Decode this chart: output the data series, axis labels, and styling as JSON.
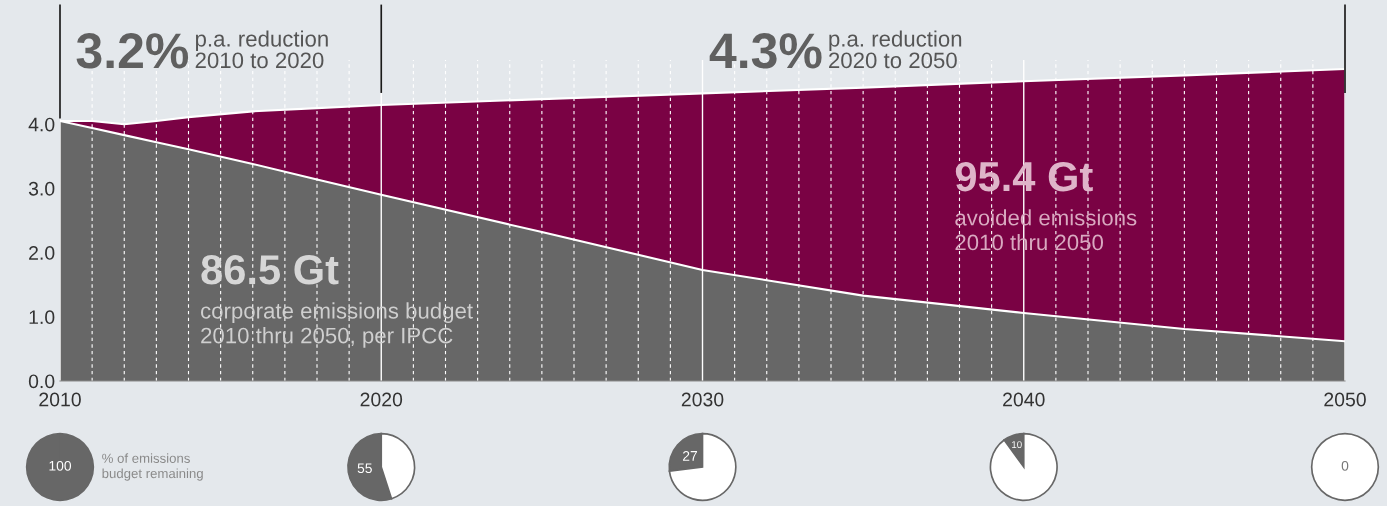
{
  "chart_data": [
    {
      "type": "area",
      "stacked": true,
      "x": [
        2010,
        2011,
        2012,
        2013,
        2014,
        2016,
        2018,
        2020,
        2025,
        2030,
        2035,
        2040,
        2045,
        2050
      ],
      "series": [
        {
          "color": "#676767",
          "values": [
            4.05,
            3.94,
            3.83,
            3.72,
            3.61,
            3.38,
            3.14,
            2.9,
            2.32,
            1.73,
            1.33,
            1.06,
            0.81,
            0.62
          ]
        },
        {
          "color": "#7a0244",
          "values": [
            0,
            0.11,
            0.17,
            0.33,
            0.5,
            0.82,
            1.11,
            1.4,
            2.07,
            2.75,
            3.24,
            3.61,
            3.95,
            4.24
          ]
        }
      ],
      "xlim": [
        2010,
        2050
      ],
      "ylim": [
        0,
        5
      ],
      "xticks": [
        2010,
        {
          "value": 2011,
          "label": null
        },
        {
          "value": 2012,
          "label": null
        },
        {
          "value": 2013,
          "label": null
        },
        {
          "value": 2014,
          "label": null
        },
        {
          "value": 2015,
          "label": null
        },
        {
          "value": 2016,
          "label": null
        },
        {
          "value": 2017,
          "label": null
        },
        {
          "value": 2018,
          "label": null
        },
        {
          "value": 2019,
          "label": null
        },
        2020,
        {
          "value": 2021,
          "label": null
        },
        {
          "value": 2022,
          "label": null
        },
        {
          "value": 2023,
          "label": null
        },
        {
          "value": 2024,
          "label": null
        },
        {
          "value": 2025,
          "label": null
        },
        {
          "value": 2026,
          "label": null
        },
        {
          "value": 2027,
          "label": null
        },
        {
          "value": 2028,
          "label": null
        },
        {
          "value": 2029,
          "label": null
        },
        2030,
        {
          "value": 2031,
          "label": null
        },
        {
          "value": 2032,
          "label": null
        },
        {
          "value": 2033,
          "label": null
        },
        {
          "value": 2034,
          "label": null
        },
        {
          "value": 2035,
          "label": null
        },
        {
          "value": 2036,
          "label": null
        },
        {
          "value": 2037,
          "label": null
        },
        {
          "value": 2038,
          "label": null
        },
        {
          "value": 2039,
          "label": null
        },
        2040,
        {
          "value": 2041,
          "label": null
        },
        {
          "value": 2042,
          "label": null
        },
        {
          "value": 2043,
          "label": null
        },
        {
          "value": 2044,
          "label": null
        },
        {
          "value": 2045,
          "label": null
        },
        {
          "value": 2046,
          "label": null
        },
        {
          "value": 2047,
          "label": null
        },
        {
          "value": 2048,
          "label": null
        },
        {
          "value": 2049,
          "label": null
        },
        2050
      ],
      "yticks": [
        {
          "value": 0,
          "label": "0.0"
        },
        {
          "value": 1,
          "label": "1.0"
        },
        {
          "value": 2,
          "label": "2.0"
        },
        {
          "value": 3,
          "label": "3.0"
        },
        {
          "value": 4,
          "label": "4.0"
        }
      ],
      "grid": "x",
      "annotations": [
        "3.2%",
        "p.a. reduction\n2010 to 2020",
        "4.3%",
        "p.a. reduction\n2020 to 2050",
        "86.5 Gt",
        "corporate emissions budget\n2010 thru 2050, per IPCC",
        "95.4 Gt",
        "avoided emissions\n2010 thru 2050"
      ]
    },
    {
      "type": "pie",
      "categories": [
        null,
        null
      ],
      "values": [
        100,
        0
      ],
      "colors": [
        "#676767",
        "#ffffff"
      ],
      "value_labels": [
        "100",
        null
      ],
      "annotations": [
        "% of emissions\nbudget remaining"
      ]
    },
    {
      "type": "pie",
      "categories": [
        null,
        null
      ],
      "values": [
        55,
        45
      ],
      "colors": [
        "#676767",
        "#ffffff"
      ],
      "value_labels": [
        "55",
        null
      ]
    },
    {
      "type": "pie",
      "categories": [
        null,
        null
      ],
      "values": [
        27,
        73
      ],
      "colors": [
        "#676767",
        "#ffffff"
      ],
      "value_labels": [
        "27",
        null
      ]
    },
    {
      "type": "pie",
      "categories": [
        null,
        null
      ],
      "values": [
        10,
        90
      ],
      "colors": [
        "#676767",
        "#ffffff"
      ],
      "value_labels": [
        "10",
        null
      ]
    },
    {
      "type": "pie",
      "categories": [
        null,
        null
      ],
      "values": [
        0,
        100
      ],
      "colors": [
        "#676767",
        "#ffffff"
      ],
      "value_labels": [
        "0",
        null
      ]
    }
  ]
}
